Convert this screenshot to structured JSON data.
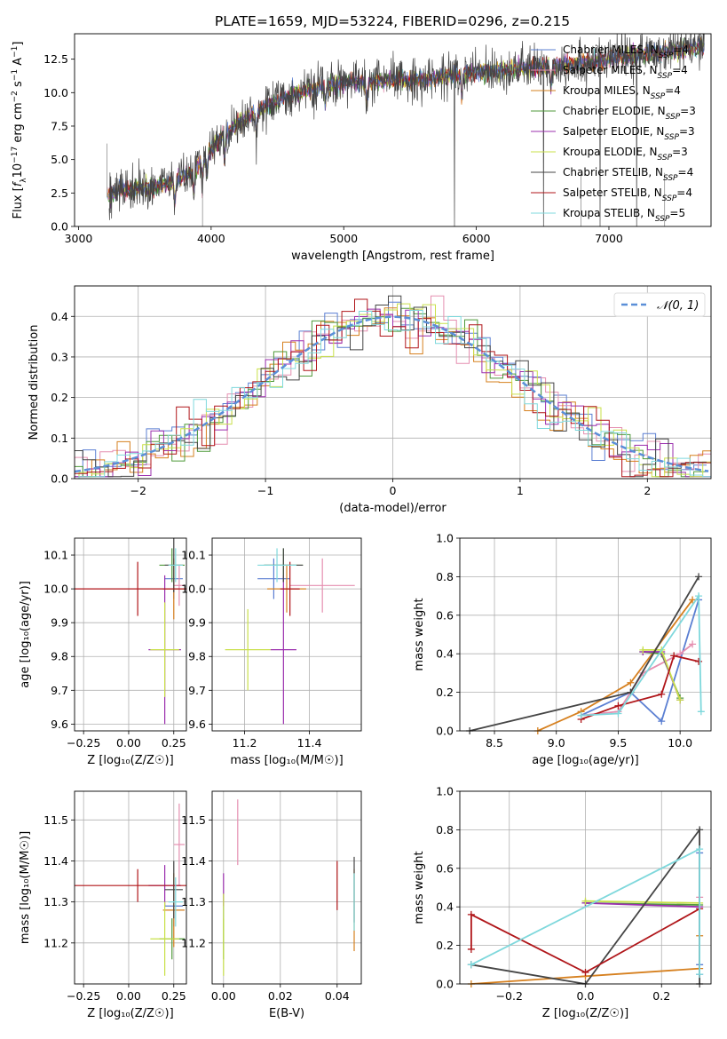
{
  "figure_title": "PLATE=1659, MJD=53224, FIBERID=0296, z=0.215",
  "series_styles": [
    {
      "name": "Chabrier MILES",
      "nssp": "4",
      "color": "#5b7fd2"
    },
    {
      "name": "Salpeter MILES",
      "nssp": "4",
      "color": "#e58fb0"
    },
    {
      "name": "Kroupa MILES",
      "nssp": "4",
      "color": "#d6801f"
    },
    {
      "name": "Chabrier ELODIE",
      "nssp": "3",
      "color": "#4f9a3a"
    },
    {
      "name": "Salpeter ELODIE",
      "nssp": "3",
      "color": "#9b2fae"
    },
    {
      "name": "Kroupa ELODIE",
      "nssp": "3",
      "color": "#c9e04a"
    },
    {
      "name": "Chabrier STELIB",
      "nssp": "4",
      "color": "#454545"
    },
    {
      "name": "Salpeter STELIB",
      "nssp": "4",
      "color": "#b0161a"
    },
    {
      "name": "Kroupa STELIB",
      "nssp": "5",
      "color": "#7fd8dc"
    }
  ],
  "chart_data": [
    {
      "type": "line",
      "panel": "spectrum",
      "xlabel": "wavelength [Angstrom, rest frame]",
      "ylabel_parts": {
        "pre": "Flux [",
        "sym": "f",
        "sub": "λ",
        "mid": "10",
        "sup": "−17",
        "post": " erg cm",
        "sup2": "−2",
        "post2": " s",
        "sup3": "−1",
        "post3": " A",
        "sup4": "−1",
        "post4": "]"
      },
      "xlim": [
        2970,
        7770
      ],
      "ylim": [
        0,
        14.4
      ],
      "xticks": [
        3000,
        4000,
        5000,
        6000,
        7000
      ],
      "yticks": [
        0.0,
        2.5,
        5.0,
        7.5,
        10.0,
        12.5
      ],
      "ytick_labels": [
        "0.0",
        "2.5",
        "5.0",
        "7.5",
        "10.0",
        "12.5"
      ],
      "xrange_data": [
        3215,
        7720
      ],
      "continuum": {
        "x": [
          3215,
          3300,
          3400,
          3550,
          3700,
          3850,
          3950,
          4050,
          4200,
          4400,
          4600,
          4800,
          5000,
          5200,
          5400,
          5600,
          5800,
          6000,
          6200,
          6400,
          6600,
          6800,
          7000,
          7200,
          7400,
          7600,
          7720
        ],
        "y": [
          2.2,
          2.7,
          2.8,
          2.9,
          3.3,
          4.0,
          5.1,
          6.4,
          7.7,
          8.9,
          9.8,
          10.4,
          10.8,
          10.8,
          10.9,
          11.0,
          11.3,
          11.5,
          11.7,
          11.8,
          12.0,
          12.2,
          12.5,
          12.8,
          13.0,
          13.3,
          13.5
        ]
      }
    },
    {
      "type": "bar",
      "panel": "residual-histogram",
      "xlabel": "(data-model)/error",
      "ylabel": "Normed distribution",
      "xlim": [
        -2.5,
        2.5
      ],
      "ylim": [
        0,
        0.475
      ],
      "xticks": [
        -2,
        -1,
        0,
        1,
        2
      ],
      "xtick_labels": [
        "−2",
        "−1",
        "0",
        "1",
        "2"
      ],
      "yticks": [
        0.0,
        0.1,
        0.2,
        0.3,
        0.4
      ],
      "ytick_labels": [
        "0.0",
        "0.1",
        "0.2",
        "0.3",
        "0.4"
      ],
      "bin_width": 0.1,
      "reference_label": "𝒩(0, 1)",
      "reference_color": "#5b8fd8"
    },
    {
      "type": "scatter",
      "panel": "age-vs-Z",
      "xlabel": "Z [log₁₀(Z/Z☉)]",
      "ylabel": "age  [log₁₀(age/yr)]",
      "xlim": [
        -0.3,
        0.32
      ],
      "ylim": [
        9.58,
        10.15
      ],
      "xticks": [
        -0.25,
        0,
        0.25
      ],
      "xtick_labels": [
        "−0.25",
        "0.00",
        "0.25"
      ],
      "yticks": [
        9.6,
        9.7,
        9.8,
        9.9,
        10.0,
        10.1
      ],
      "ytick_labels": [
        "9.6",
        "9.7",
        "9.8",
        "9.9",
        "10.0",
        "10.1"
      ],
      "points": [
        {
          "s": 0,
          "x": 0.25,
          "xerr": 0.05,
          "y": 10.03,
          "yerr": 0.06
        },
        {
          "s": 1,
          "x": 0.28,
          "xerr": 0.03,
          "y": 10.01,
          "yerr": 0.06
        },
        {
          "s": 2,
          "x": 0.25,
          "xerr": 0.06,
          "y": 10.0,
          "yerr": 0.09
        },
        {
          "s": 3,
          "x": 0.24,
          "xerr": 0.07,
          "y": 10.07,
          "yerr": 0.05
        },
        {
          "s": 4,
          "x": 0.2,
          "xerr": 0.09,
          "y": 9.82,
          "yerr": 0.22
        },
        {
          "s": 5,
          "x": 0.2,
          "xerr": 0.08,
          "y": 9.82,
          "yerr": 0.14
        },
        {
          "s": 6,
          "x": 0.25,
          "xerr": 0.05,
          "y": 10.07,
          "yerr": 0.08
        },
        {
          "s": 7,
          "x": 0.05,
          "xerr": 0.35,
          "y": 10.0,
          "yerr": 0.08
        },
        {
          "s": 8,
          "x": 0.26,
          "xerr": 0.04,
          "y": 10.07,
          "yerr": 0.05
        }
      ]
    },
    {
      "type": "scatter",
      "panel": "age-vs-mass",
      "xlabel": "mass [log₁₀(M/M☉)]",
      "ylabel": "",
      "xlim": [
        11.1,
        11.56
      ],
      "ylim": [
        9.58,
        10.15
      ],
      "xticks": [
        11.2,
        11.4
      ],
      "xtick_labels": [
        "11.2",
        "11.4"
      ],
      "yticks": [
        9.6,
        9.7,
        9.8,
        9.9,
        10.0,
        10.1
      ],
      "ytick_labels": [
        "9.6",
        "9.7",
        "9.8",
        "9.9",
        "10.0",
        "10.1"
      ],
      "points": [
        {
          "s": 0,
          "x": 11.29,
          "xerr": 0.05,
          "y": 10.03,
          "yerr": 0.06
        },
        {
          "s": 1,
          "x": 11.44,
          "xerr": 0.1,
          "y": 10.01,
          "yerr": 0.08
        },
        {
          "s": 2,
          "x": 11.33,
          "xerr": 0.06,
          "y": 10.0,
          "yerr": 0.07
        },
        {
          "s": 3,
          "x": 11.32,
          "xerr": 0.06,
          "y": 10.07,
          "yerr": 0.05
        },
        {
          "s": 4,
          "x": 11.32,
          "xerr": 0.04,
          "y": 9.82,
          "yerr": 0.22
        },
        {
          "s": 5,
          "x": 11.21,
          "xerr": 0.07,
          "y": 9.82,
          "yerr": 0.12
        },
        {
          "s": 6,
          "x": 11.32,
          "xerr": 0.06,
          "y": 10.07,
          "yerr": 0.05
        },
        {
          "s": 7,
          "x": 11.34,
          "xerr": 0.03,
          "y": 10.0,
          "yerr": 0.08
        },
        {
          "s": 8,
          "x": 11.3,
          "xerr": 0.06,
          "y": 10.07,
          "yerr": 0.05
        }
      ]
    },
    {
      "type": "line",
      "panel": "mass-weight-vs-age",
      "xlabel": "age  [log₁₀(age/yr)]",
      "ylabel": "mass weight",
      "xlim": [
        8.22,
        10.25
      ],
      "ylim": [
        0,
        1
      ],
      "xticks": [
        8.5,
        9.0,
        9.5,
        10.0
      ],
      "xtick_labels": [
        "8.5",
        "9.0",
        "9.5",
        "10.0"
      ],
      "yticks": [
        0,
        0.2,
        0.4,
        0.6,
        0.8,
        1.0
      ],
      "ytick_labels": [
        "0.0",
        "0.2",
        "0.4",
        "0.6",
        "0.8",
        "1.0"
      ],
      "series": [
        {
          "s": 0,
          "x": [
            9.2,
            9.6,
            9.85,
            10.15
          ],
          "y": [
            0.08,
            0.2,
            0.05,
            0.68
          ]
        },
        {
          "s": 1,
          "x": [
            9.2,
            9.5,
            9.7,
            10.0,
            10.1
          ],
          "y": [
            0.08,
            0.1,
            0.3,
            0.4,
            0.45
          ]
        },
        {
          "s": 2,
          "x": [
            8.85,
            9.2,
            9.6,
            10.1
          ],
          "y": [
            0.0,
            0.1,
            0.25,
            0.68
          ]
        },
        {
          "s": 3,
          "x": [
            9.7,
            9.85,
            10.0
          ],
          "y": [
            0.41,
            0.4,
            0.17
          ]
        },
        {
          "s": 4,
          "x": [
            9.7,
            9.85,
            10.0
          ],
          "y": [
            0.41,
            0.41,
            0.16
          ]
        },
        {
          "s": 5,
          "x": [
            9.7,
            9.85,
            10.0
          ],
          "y": [
            0.42,
            0.42,
            0.16
          ]
        },
        {
          "s": 6,
          "x": [
            8.3,
            9.6,
            10.15
          ],
          "y": [
            0.0,
            0.2,
            0.8
          ]
        },
        {
          "s": 7,
          "x": [
            9.2,
            9.5,
            9.85,
            9.95,
            10.15
          ],
          "y": [
            0.06,
            0.13,
            0.19,
            0.39,
            0.36
          ]
        },
        {
          "s": 8,
          "x": [
            9.2,
            9.5,
            10.15,
            10.17
          ],
          "y": [
            0.08,
            0.09,
            0.7,
            0.1
          ]
        }
      ]
    },
    {
      "type": "scatter",
      "panel": "mass-vs-Z",
      "xlabel": "Z [log₁₀(Z/Z☉)]",
      "ylabel": "mass [log₁₀(M/M☉)]",
      "xlim": [
        -0.3,
        0.32
      ],
      "ylim": [
        11.1,
        11.57
      ],
      "xticks": [
        -0.25,
        0,
        0.25
      ],
      "xtick_labels": [
        "−0.25",
        "0.00",
        "0.25"
      ],
      "yticks": [
        11.2,
        11.3,
        11.4,
        11.5
      ],
      "ytick_labels": [
        "11.2",
        "11.3",
        "11.4",
        "11.5"
      ],
      "points": [
        {
          "s": 0,
          "x": 0.25,
          "xerr": 0.05,
          "y": 11.29,
          "yerr": 0.05
        },
        {
          "s": 1,
          "x": 0.28,
          "xerr": 0.03,
          "y": 11.44,
          "yerr": 0.1
        },
        {
          "s": 2,
          "x": 0.25,
          "xerr": 0.06,
          "y": 11.28,
          "yerr": 0.09
        },
        {
          "s": 3,
          "x": 0.24,
          "xerr": 0.07,
          "y": 11.21,
          "yerr": 0.05
        },
        {
          "s": 4,
          "x": 0.2,
          "xerr": 0.09,
          "y": 11.34,
          "yerr": 0.05
        },
        {
          "s": 5,
          "x": 0.2,
          "xerr": 0.08,
          "y": 11.21,
          "yerr": 0.09
        },
        {
          "s": 6,
          "x": 0.25,
          "xerr": 0.05,
          "y": 11.33,
          "yerr": 0.07
        },
        {
          "s": 7,
          "x": 0.05,
          "xerr": 0.35,
          "y": 11.34,
          "yerr": 0.04
        },
        {
          "s": 8,
          "x": 0.26,
          "xerr": 0.04,
          "y": 11.3,
          "yerr": 0.06
        }
      ]
    },
    {
      "type": "scatter",
      "panel": "mass-vs-EBV",
      "xlabel": "E(B-V)",
      "ylabel": "",
      "xlim": [
        -0.004,
        0.0485
      ],
      "ylim": [
        11.1,
        11.57
      ],
      "xticks": [
        0.0,
        0.02,
        0.04
      ],
      "xtick_labels": [
        "0.00",
        "0.02",
        "0.04"
      ],
      "yticks": [
        11.2,
        11.3,
        11.4,
        11.5
      ],
      "ytick_labels": [
        "11.2",
        "11.3",
        "11.4",
        "11.5"
      ],
      "points": [
        {
          "s": 0,
          "x": 0.0,
          "xerr": 0,
          "y": 11.29,
          "yerr": 0.03
        },
        {
          "s": 1,
          "x": 0.005,
          "xerr": 0,
          "y": 11.47,
          "yerr": 0.08
        },
        {
          "s": 2,
          "x": 0.046,
          "xerr": 0,
          "y": 11.28,
          "yerr": 0.1
        },
        {
          "s": 3,
          "x": 0.0,
          "xerr": 0,
          "y": 11.21,
          "yerr": 0.05
        },
        {
          "s": 4,
          "x": 0.0,
          "xerr": 0,
          "y": 11.33,
          "yerr": 0.04
        },
        {
          "s": 5,
          "x": 0.0,
          "xerr": 0,
          "y": 11.22,
          "yerr": 0.1
        },
        {
          "s": 6,
          "x": 0.046,
          "xerr": 0,
          "y": 11.33,
          "yerr": 0.08
        },
        {
          "s": 7,
          "x": 0.04,
          "xerr": 0,
          "y": 11.34,
          "yerr": 0.06
        },
        {
          "s": 8,
          "x": 0.046,
          "xerr": 0,
          "y": 11.3,
          "yerr": 0.07
        }
      ]
    },
    {
      "type": "line",
      "panel": "mass-weight-vs-Z",
      "xlabel": "Z [log₁₀(Z/Z☉)]",
      "ylabel": "mass weight",
      "xlim": [
        -0.33,
        0.33
      ],
      "ylim": [
        0,
        1
      ],
      "xticks": [
        -0.2,
        0.0,
        0.2
      ],
      "xtick_labels": [
        "−0.2",
        "0.0",
        "0.2"
      ],
      "yticks": [
        0,
        0.2,
        0.4,
        0.6,
        0.8,
        1.0
      ],
      "ytick_labels": [
        "0.0",
        "0.2",
        "0.4",
        "0.6",
        "0.8",
        "1.0"
      ],
      "series": [
        {
          "s": 0,
          "x": [
            0.3,
            0.3,
            0.3
          ],
          "y": [
            0.68,
            0.1,
            0.05
          ]
        },
        {
          "s": 1,
          "x": [
            0.3,
            0.3
          ],
          "y": [
            0.45,
            0.4
          ]
        },
        {
          "s": 2,
          "x": [
            -0.3,
            0.0,
            0.3,
            0.3
          ],
          "y": [
            0.0,
            0.04,
            0.08,
            0.25
          ]
        },
        {
          "s": 3,
          "x": [
            0.0,
            0.3
          ],
          "y": [
            0.42,
            0.41
          ]
        },
        {
          "s": 4,
          "x": [
            0.0,
            0.3
          ],
          "y": [
            0.42,
            0.4
          ]
        },
        {
          "s": 5,
          "x": [
            0.0,
            0.3
          ],
          "y": [
            0.43,
            0.42
          ]
        },
        {
          "s": 6,
          "x": [
            -0.3,
            0.0,
            0.3,
            0.3
          ],
          "y": [
            0.1,
            0.0,
            0.8,
            0.0
          ]
        },
        {
          "s": 7,
          "x": [
            -0.3,
            -0.3,
            0.0,
            0.3
          ],
          "y": [
            0.18,
            0.36,
            0.06,
            0.39
          ]
        },
        {
          "s": 8,
          "x": [
            -0.3,
            0.3,
            0.3
          ],
          "y": [
            0.1,
            0.7,
            0.05
          ]
        }
      ]
    }
  ]
}
